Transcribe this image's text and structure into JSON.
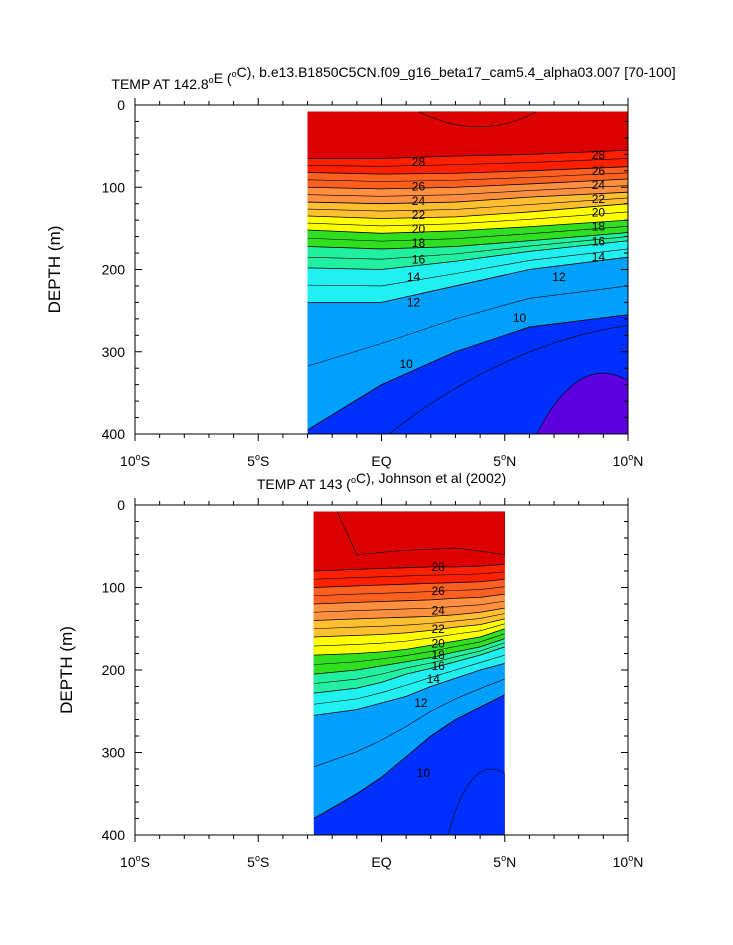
{
  "chart_data": [
    {
      "type": "heatmap",
      "title": "TEMP AT 142.8°E (°C), b.e13.B1850C5CN.f09_g16_beta17_cam5.4_alpha03.007 [70-100]",
      "title_parts": {
        "pre": "TEMP AT 142.8",
        "sup1": "o",
        "mid": "E (",
        "sup2": "o",
        "post": "C), b.e13.B1850C5CN.f09_g16_beta17_cam5.4_alpha03.007 [70-100]"
      },
      "ylabel": "DEPTH (m)",
      "xlim": [
        -10,
        10
      ],
      "ylim": [
        0,
        400
      ],
      "y_inverted": true,
      "data_extent_x": [
        -3,
        10
      ],
      "y_ticks": [
        0,
        100,
        200,
        300,
        400
      ],
      "x_ticks": [
        -10,
        -5,
        0,
        5,
        10
      ],
      "x_tick_labels": [
        {
          "main": "10",
          "sup": "o",
          "end": "S"
        },
        {
          "main": "5",
          "sup": "o",
          "end": "S"
        },
        {
          "main": "EQ",
          "sup": "",
          "end": ""
        },
        {
          "main": "5",
          "sup": "o",
          "end": "N"
        },
        {
          "main": "10",
          "sup": "o",
          "end": "N"
        }
      ],
      "x": [
        -3,
        0,
        3,
        6,
        10
      ],
      "isotherm_depths": {
        "28": [
          65,
          65,
          62,
          60,
          55
        ],
        "26": [
          82,
          84,
          83,
          80,
          75
        ],
        "24": [
          100,
          102,
          100,
          96,
          90
        ],
        "22": [
          118,
          120,
          118,
          112,
          106
        ],
        "20": [
          135,
          138,
          136,
          130,
          120
        ],
        "18": [
          152,
          156,
          153,
          148,
          140
        ],
        "16": [
          172,
          175,
          172,
          165,
          155
        ],
        "14": [
          198,
          200,
          190,
          178,
          165
        ],
        "12": [
          240,
          240,
          220,
          200,
          185
        ],
        "10": [
          395,
          340,
          300,
          270,
          255
        ]
      },
      "contour_labels": [
        {
          "value": "28",
          "x": 1.5,
          "y": 69
        },
        {
          "value": "26",
          "x": 1.5,
          "y": 99
        },
        {
          "value": "24",
          "x": 1.5,
          "y": 117
        },
        {
          "value": "22",
          "x": 1.5,
          "y": 134
        },
        {
          "value": "20",
          "x": 1.5,
          "y": 151
        },
        {
          "value": "18",
          "x": 1.5,
          "y": 168
        },
        {
          "value": "16",
          "x": 1.5,
          "y": 188
        },
        {
          "value": "14",
          "x": 1.3,
          "y": 209
        },
        {
          "value": "12",
          "x": 1.3,
          "y": 240
        },
        {
          "value": "10",
          "x": 1.0,
          "y": 315
        },
        {
          "value": "28",
          "x": 8.8,
          "y": 61
        },
        {
          "value": "26",
          "x": 8.8,
          "y": 80
        },
        {
          "value": "24",
          "x": 8.8,
          "y": 97
        },
        {
          "value": "22",
          "x": 8.8,
          "y": 114
        },
        {
          "value": "20",
          "x": 8.8,
          "y": 131
        },
        {
          "value": "18",
          "x": 8.8,
          "y": 148
        },
        {
          "value": "16",
          "x": 8.8,
          "y": 166
        },
        {
          "value": "14",
          "x": 8.8,
          "y": 185
        },
        {
          "value": "12",
          "x": 7.2,
          "y": 209
        },
        {
          "value": "10",
          "x": 5.6,
          "y": 259
        }
      ]
    },
    {
      "type": "heatmap",
      "title": "TEMP AT 143 (°C), Johnson et al (2002)",
      "title_parts": {
        "pre": "TEMP AT 143 (",
        "sup1": "",
        "mid": "",
        "sup2": "o",
        "post": "C), Johnson et al (2002)"
      },
      "ylabel": "DEPTH (m)",
      "xlim": [
        -10,
        10
      ],
      "ylim": [
        0,
        400
      ],
      "y_inverted": true,
      "data_extent_x": [
        -2.75,
        5
      ],
      "y_ticks": [
        0,
        100,
        200,
        300,
        400
      ],
      "x_ticks": [
        -10,
        -5,
        0,
        5,
        10
      ],
      "x_tick_labels": [
        {
          "main": "10",
          "sup": "o",
          "end": "S"
        },
        {
          "main": "5",
          "sup": "o",
          "end": "S"
        },
        {
          "main": "EQ",
          "sup": "",
          "end": ""
        },
        {
          "main": "5",
          "sup": "o",
          "end": "N"
        },
        {
          "main": "10",
          "sup": "o",
          "end": "N"
        }
      ],
      "x": [
        -2.75,
        -1,
        0,
        1,
        2,
        3,
        4,
        5
      ],
      "isotherm_depths": {
        "28": [
          80,
          78,
          77,
          76,
          75,
          75,
          74,
          72
        ],
        "26": [
          100,
          98,
          97,
          96,
          95,
          94,
          93,
          90
        ],
        "24": [
          120,
          118,
          117,
          116,
          115,
          113,
          112,
          108
        ],
        "22": [
          140,
          138,
          137,
          136,
          135,
          133,
          130,
          125
        ],
        "20": [
          160,
          158,
          157,
          155,
          152,
          148,
          145,
          138
        ],
        "18": [
          182,
          180,
          178,
          175,
          170,
          165,
          160,
          150
        ],
        "16": [
          205,
          200,
          195,
          190,
          185,
          178,
          172,
          162
        ],
        "14": [
          228,
          222,
          215,
          205,
          198,
          190,
          182,
          172
        ],
        "12": [
          255,
          248,
          240,
          232,
          220,
          210,
          200,
          192
        ],
        "10": [
          380,
          350,
          330,
          305,
          280,
          260,
          245,
          230
        ]
      },
      "contour_labels": [
        {
          "value": "28",
          "x": 2.3,
          "y": 75
        },
        {
          "value": "26",
          "x": 2.3,
          "y": 104
        },
        {
          "value": "24",
          "x": 2.3,
          "y": 128
        },
        {
          "value": "22",
          "x": 2.3,
          "y": 150
        },
        {
          "value": "20",
          "x": 2.3,
          "y": 168
        },
        {
          "value": "18",
          "x": 2.3,
          "y": 182
        },
        {
          "value": "16",
          "x": 2.3,
          "y": 195
        },
        {
          "value": "14",
          "x": 2.1,
          "y": 211
        },
        {
          "value": "12",
          "x": 1.6,
          "y": 240
        },
        {
          "value": "10",
          "x": 1.7,
          "y": 325
        }
      ]
    }
  ],
  "colors": {
    "gt28": "#dd0000",
    "26_28": "#ff2000",
    "24_26": "#ff6020",
    "22_24": "#ff9040",
    "20_22": "#ffc030",
    "18_20": "#ffff00",
    "16_18": "#30e020",
    "14_16": "#20f0a0",
    "12_14": "#20f0f0",
    "10_12": "#00a0ff",
    "lt10": "#0030ff",
    "deep": "#5c00e0"
  }
}
